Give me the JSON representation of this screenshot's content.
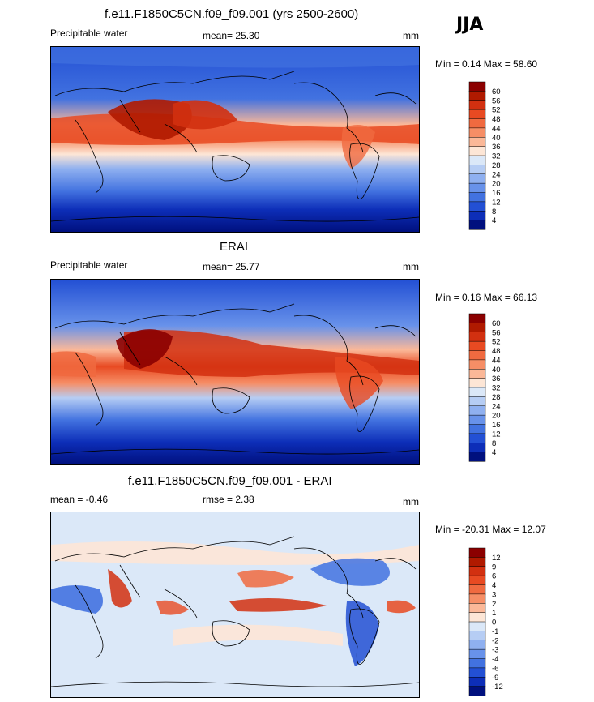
{
  "season": "JJA",
  "panels": [
    {
      "id": "model",
      "title": "f.e11.F1850C5CN.f09_f09.001 (yrs 2500-2600)",
      "left_label": "Precipitable water",
      "mean_label": "mean=  25.30",
      "rmse_label": "",
      "units": "mm",
      "minmax_label": "Min =  0.14 Max =  58.60",
      "colorbar_labels": [
        "60",
        "56",
        "52",
        "48",
        "44",
        "40",
        "36",
        "32",
        "28",
        "24",
        "20",
        "16",
        "12",
        "8",
        "4"
      ],
      "colorbar_colors": [
        "#8b0000",
        "#b01a00",
        "#d23010",
        "#e84a22",
        "#f06a40",
        "#f68e66",
        "#fbb898",
        "#fde6d6",
        "#dbe8f8",
        "#b6cdf4",
        "#8fb0f0",
        "#6892ea",
        "#4272e0",
        "#2350d4",
        "#0d2eb8",
        "#00107e"
      ]
    },
    {
      "id": "obs",
      "title": "ERAI",
      "left_label": "Precipitable water",
      "mean_label": "mean=  25.77",
      "rmse_label": "",
      "units": "mm",
      "minmax_label": "Min =  0.16 Max =  66.13",
      "colorbar_labels": [
        "60",
        "56",
        "52",
        "48",
        "44",
        "40",
        "36",
        "32",
        "28",
        "24",
        "20",
        "16",
        "12",
        "8",
        "4"
      ],
      "colorbar_colors": [
        "#8b0000",
        "#b01a00",
        "#d23010",
        "#e84a22",
        "#f06a40",
        "#f68e66",
        "#fbb898",
        "#fde6d6",
        "#dbe8f8",
        "#b6cdf4",
        "#8fb0f0",
        "#6892ea",
        "#4272e0",
        "#2350d4",
        "#0d2eb8",
        "#00107e"
      ]
    },
    {
      "id": "diff",
      "title": "f.e11.F1850C5CN.f09_f09.001 - ERAI",
      "left_label": "mean =  -0.46",
      "mean_label": "",
      "rmse_label": "rmse =   2.38",
      "units": "mm",
      "minmax_label": "Min = -20.31 Max =  12.07",
      "colorbar_labels": [
        "12",
        "9",
        "6",
        "4",
        "3",
        "2",
        "1",
        "0",
        "-1",
        "-2",
        "-3",
        "-4",
        "-6",
        "-9",
        "-12"
      ],
      "colorbar_colors": [
        "#8b0000",
        "#b01a00",
        "#d23010",
        "#e84a22",
        "#f06a40",
        "#f68e66",
        "#fbb898",
        "#fde6d6",
        "#dbe8f8",
        "#b6cdf4",
        "#8fb0f0",
        "#6892ea",
        "#4272e0",
        "#2350d4",
        "#0d2eb8",
        "#00107e"
      ]
    }
  ],
  "chart_data": [
    {
      "type": "heatmap",
      "title": "f.e11.F1850C5CN.f09_f09.001 (yrs 2500-2600)",
      "variable": "Precipitable water",
      "units": "mm",
      "season": "JJA",
      "mean": 25.3,
      "min": 0.14,
      "max": 58.6,
      "contour_levels": [
        4,
        8,
        12,
        16,
        20,
        24,
        28,
        32,
        36,
        40,
        44,
        48,
        52,
        56,
        60
      ]
    },
    {
      "type": "heatmap",
      "title": "ERAI",
      "variable": "Precipitable water",
      "units": "mm",
      "season": "JJA",
      "mean": 25.77,
      "min": 0.16,
      "max": 66.13,
      "contour_levels": [
        4,
        8,
        12,
        16,
        20,
        24,
        28,
        32,
        36,
        40,
        44,
        48,
        52,
        56,
        60
      ]
    },
    {
      "type": "heatmap",
      "title": "f.e11.F1850C5CN.f09_f09.001 - ERAI",
      "units": "mm",
      "season": "JJA",
      "mean": -0.46,
      "rmse": 2.38,
      "min": -20.31,
      "max": 12.07,
      "contour_levels": [
        -12,
        -9,
        -6,
        -4,
        -3,
        -2,
        -1,
        0,
        1,
        2,
        3,
        4,
        6,
        9,
        12
      ]
    }
  ]
}
